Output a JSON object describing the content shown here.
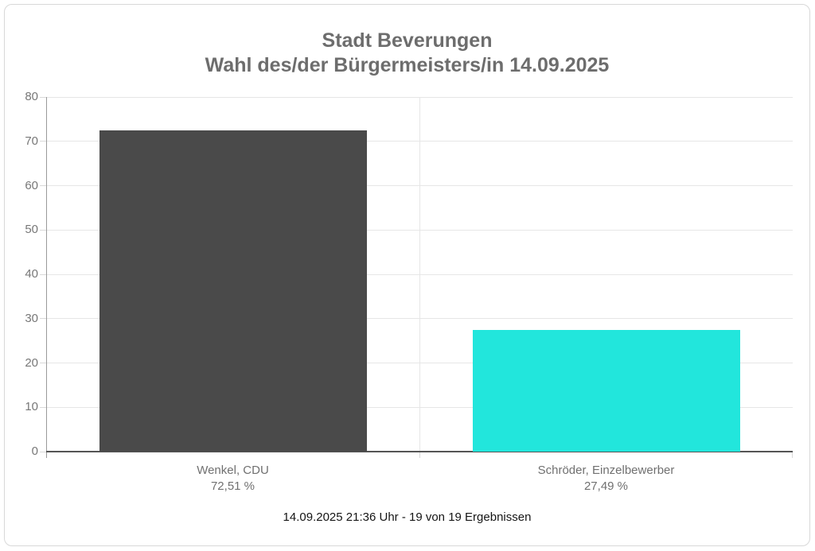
{
  "chart_data": {
    "type": "bar",
    "title": "Stadt Beverungen",
    "subtitle": "Wahl des/der Bürgermeisters/in 14.09.2025",
    "categories": [
      "Wenkel, CDU",
      "Schröder, Einzelbewerber"
    ],
    "values": [
      72.51,
      27.49
    ],
    "value_labels": [
      "72,51 %",
      "27,49 %"
    ],
    "bar_colors": [
      "#4a4a4a",
      "#22e6dc"
    ],
    "xlabel": "",
    "ylabel": "",
    "ylim": [
      0,
      80
    ],
    "yticks": [
      0,
      10,
      20,
      30,
      40,
      50,
      60,
      70,
      80
    ],
    "grid": true,
    "legend": false
  },
  "footer": {
    "text": "14.09.2025 21:36 Uhr - 19 von 19 Ergebnissen"
  },
  "colors": {
    "title": "#6d6d6d",
    "axis_line": "#9a9a9a",
    "baseline": "#555555",
    "gridline": "#e6e6e6",
    "tick": "#d9d9d9",
    "axis_label": "#777777",
    "category_label": "#707070",
    "footer_text": "#151515",
    "card_border": "#d8d8d8",
    "background": "#ffffff"
  }
}
